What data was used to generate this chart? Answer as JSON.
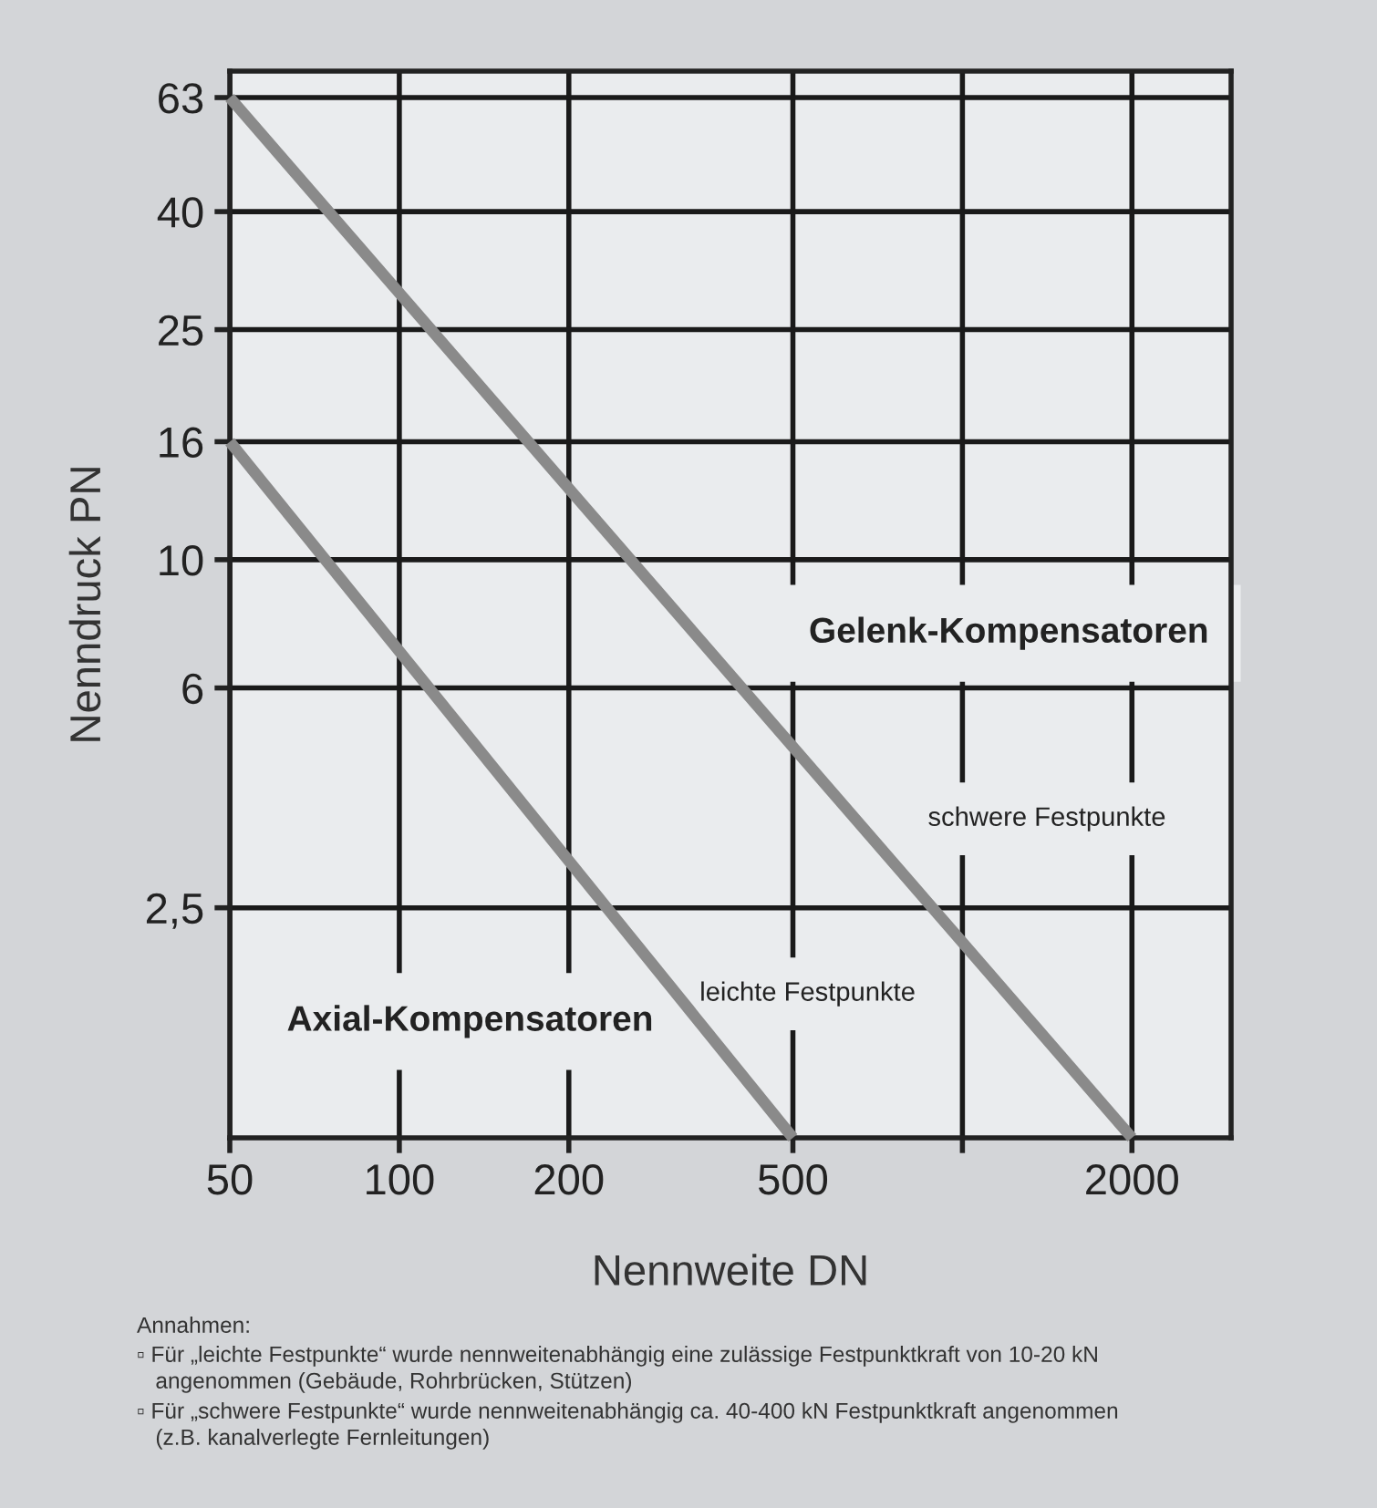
{
  "chart_data": {
    "type": "line",
    "xlabel": "Nennweite DN",
    "ylabel": "Nenndruck PN",
    "log": "xy",
    "grid": true,
    "marker": "none",
    "line_style": "solid",
    "xlim": [
      50,
      3000
    ],
    "xticks": [
      50,
      100,
      200,
      500,
      {
        "value": 1000,
        "label": null
      },
      2000
    ],
    "ylim": [
      1,
      70
    ],
    "yticks": [
      {
        "value": 2.5,
        "label": "2,5"
      },
      6,
      10,
      16,
      25,
      40,
      63
    ],
    "series": [
      {
        "color": "#8a8a8a",
        "x": [
          50,
          2000
        ],
        "values": [
          63,
          1
        ]
      },
      {
        "color": "#8a8a8a",
        "x": [
          50,
          500
        ],
        "values": [
          16,
          1
        ]
      }
    ],
    "annotations": [
      "Gelenk-Kompensatoren",
      "Axial-Kompensatoren",
      "schwere Festpunkte",
      "leichte Festpunkte",
      "Annahmen:",
      "▫ Für „leichte Festpunkte“ wurde nennweitenabhängig eine zulässige Festpunktkraft von 10-20 kN\n   angenommen (Gebäude, Rohrbrücken, Stützen)",
      "▫ Für „schwere Festpunkte“ wurde nennweitenabhängig ca. 40-400 kN Festpunktkraft angenommen\n   (z.B. kanalverlegte Fernleitungen)"
    ]
  }
}
